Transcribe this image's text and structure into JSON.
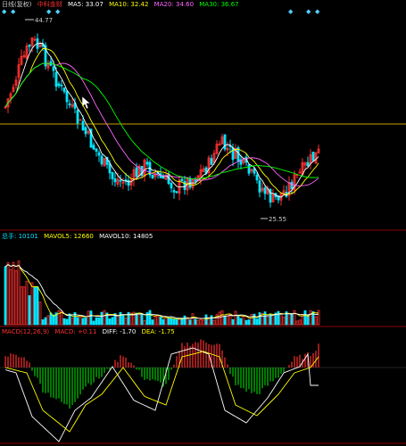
{
  "price_panel": {
    "period_label": "日线(复权)",
    "stock_name": "中科金财",
    "ma5": {
      "label": "MA5: 33.07",
      "color": "#ffffff"
    },
    "ma10": {
      "label": "MA10: 32.42",
      "color": "#ffff00"
    },
    "ma20": {
      "label": "MA20: 34.60",
      "color": "#ff66ff"
    },
    "ma30": {
      "label": "MA30: 36.67",
      "color": "#00ff00"
    },
    "high_marker": "44.77",
    "low_marker": "25.55",
    "support_line_color": "#c8a000"
  },
  "volume_panel": {
    "total_label": "总手: 10101",
    "mavol5_label": "MAVOL5: 12660",
    "mavol10_label": "MAVOL10: 14805"
  },
  "macd_panel": {
    "title_label": "MACD(12,26,9)",
    "macd_label": "MACD: +0.11",
    "diff_label": "DIFF: -1.70",
    "dea_label": "DEA: -1.75"
  },
  "colors": {
    "up": "#ff3030",
    "down": "#00e5ff",
    "macd_pos": "#ff3030",
    "macd_neg": "#00cc00",
    "grid": "#8b0000"
  },
  "icons": [
    "diamond-icon"
  ]
}
